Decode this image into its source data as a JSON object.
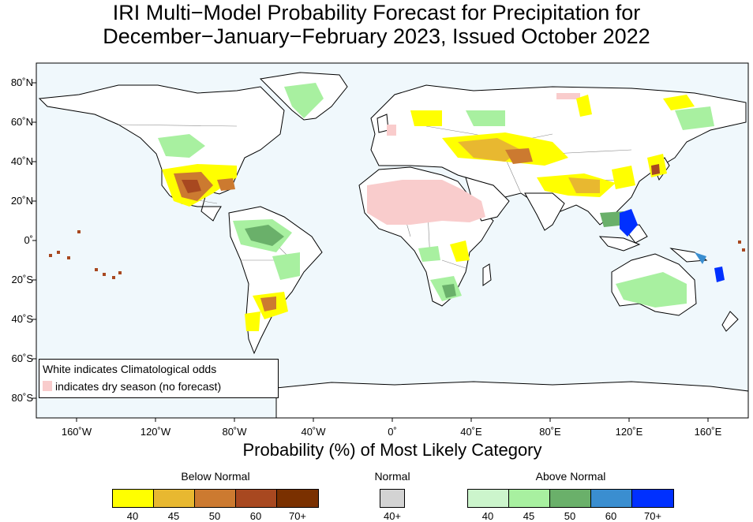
{
  "title": {
    "line1": "IRI Multi−Model Probability Forecast for Precipitation for",
    "line2": "December−January−February 2023, Issued October 2022"
  },
  "axes": {
    "lat_labels": [
      "80˚N",
      "60˚N",
      "40˚N",
      "20˚N",
      "0˚",
      "20˚S",
      "40˚S",
      "60˚S",
      "80˚S"
    ],
    "lon_labels": [
      "160˚W",
      "120˚W",
      "80˚W",
      "40˚W",
      "0˚",
      "40˚E",
      "80˚E",
      "120˚E",
      "160˚E"
    ]
  },
  "map_legend": {
    "line1": "White indicates Climatological odds",
    "line2": "indicates dry season (no forecast)",
    "dry_color": "#f9cccc"
  },
  "colorbar": {
    "xlabel": "Probability (%) of Most Likely Category",
    "below_normal": {
      "label": "Below Normal",
      "colors": [
        "#ffff00",
        "#e8b830",
        "#cc7a30",
        "#a84820",
        "#7a3000"
      ],
      "ticks": [
        "40",
        "45",
        "50",
        "60",
        "70+"
      ]
    },
    "normal": {
      "label": "Normal",
      "colors": [
        "#d3d3d3"
      ],
      "ticks": [
        "40+"
      ]
    },
    "above_normal": {
      "label": "Above Normal",
      "colors": [
        "#ccf5cc",
        "#a8f0a0",
        "#6ab06a",
        "#3a8ed0",
        "#0030ff"
      ],
      "ticks": [
        "40",
        "45",
        "50",
        "60",
        "70+"
      ]
    }
  },
  "colors": {
    "ocean": "#f0f8fc",
    "land": "#ffffff",
    "coast": "#000000",
    "borders": "#888888"
  }
}
